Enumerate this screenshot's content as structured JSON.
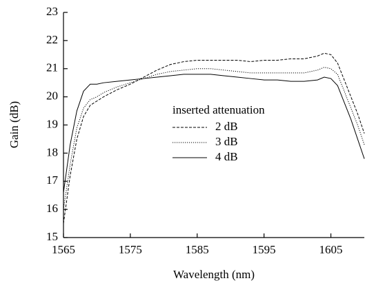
{
  "chart_data": {
    "type": "line",
    "x_label": "Wavelength (nm)",
    "y_label": "Gain (dB)",
    "legend_title": "inserted attenuation",
    "x": [
      1565,
      1566,
      1567,
      1568,
      1569,
      1570,
      1571,
      1573,
      1575,
      1577,
      1579,
      1581,
      1583,
      1585,
      1587,
      1589,
      1591,
      1593,
      1595,
      1597,
      1599,
      1601,
      1603,
      1604,
      1605,
      1606,
      1607,
      1608,
      1609,
      1610
    ],
    "series": [
      {
        "name": "2 dB",
        "color": "#000000",
        "dash": "dashed",
        "values": [
          15.5,
          17.2,
          18.5,
          19.3,
          19.7,
          19.85,
          20.0,
          20.25,
          20.45,
          20.7,
          20.95,
          21.15,
          21.25,
          21.3,
          21.3,
          21.3,
          21.3,
          21.25,
          21.3,
          21.3,
          21.35,
          21.35,
          21.45,
          21.55,
          21.5,
          21.2,
          20.6,
          20.0,
          19.4,
          18.7
        ]
      },
      {
        "name": "3 dB",
        "color": "#000000",
        "dash": "dotted",
        "values": [
          16.0,
          17.6,
          18.9,
          19.6,
          19.9,
          20.0,
          20.15,
          20.35,
          20.5,
          20.65,
          20.8,
          20.9,
          20.95,
          21.0,
          21.0,
          20.95,
          20.9,
          20.85,
          20.85,
          20.85,
          20.85,
          20.85,
          20.95,
          21.05,
          21.0,
          20.8,
          20.2,
          19.6,
          19.0,
          18.3
        ]
      },
      {
        "name": "4 dB",
        "color": "#000000",
        "dash": "solid",
        "values": [
          16.6,
          18.3,
          19.5,
          20.2,
          20.45,
          20.45,
          20.5,
          20.55,
          20.6,
          20.65,
          20.7,
          20.75,
          20.8,
          20.8,
          20.8,
          20.75,
          20.7,
          20.65,
          20.6,
          20.6,
          20.55,
          20.55,
          20.6,
          20.7,
          20.65,
          20.4,
          19.8,
          19.2,
          18.5,
          17.8
        ]
      }
    ],
    "xlim": [
      1565,
      1610
    ],
    "ylim": [
      15,
      23
    ],
    "xticks": [
      1565,
      1575,
      1585,
      1595,
      1605
    ],
    "yticks": [
      15,
      16,
      17,
      18,
      19,
      20,
      21,
      22,
      23
    ],
    "grid": false
  }
}
